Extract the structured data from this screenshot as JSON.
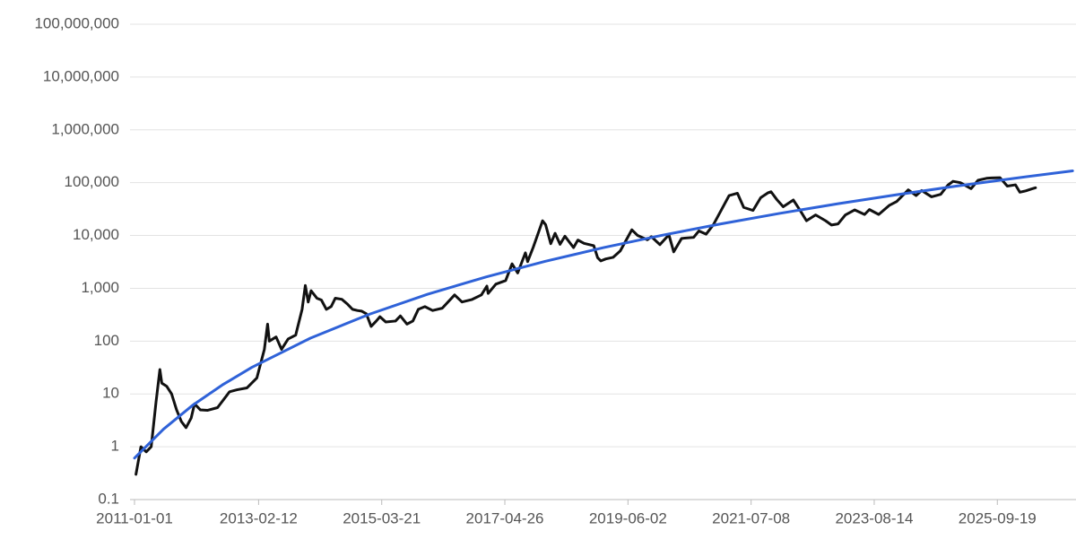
{
  "chart_data": {
    "type": "line",
    "yscale": "log",
    "grid": true,
    "xlim": [
      "2010-12-04",
      "2027-01-22"
    ],
    "xticks": [
      "2011-01-01",
      "2013-02-12",
      "2015-03-21",
      "2017-04-26",
      "2019-06-02",
      "2021-07-08",
      "2023-08-14",
      "2025-09-19"
    ],
    "ylim": [
      0.1,
      100000000
    ],
    "yticks": [
      0.1,
      1,
      10,
      100,
      {
        "value": 1000,
        "label": "1,000"
      },
      {
        "value": 10000,
        "label": "10,000"
      },
      {
        "value": 100000,
        "label": "100,000"
      },
      {
        "value": 1000000,
        "label": "1,000,000"
      },
      {
        "value": 10000000,
        "label": "10,000,000"
      },
      {
        "value": 100000000,
        "label": "100,000,000"
      }
    ],
    "series": [
      {
        "color": "#111111",
        "x": [
          "2011-01-10",
          "2011-02-10",
          "2011-03-15",
          "2011-04-15",
          "2011-05-15",
          "2011-06-08",
          "2011-06-20",
          "2011-07-20",
          "2011-08-20",
          "2011-09-20",
          "2011-10-20",
          "2011-11-18",
          "2011-12-20",
          "2012-01-10",
          "2012-02-15",
          "2012-04-01",
          "2012-06-01",
          "2012-08-15",
          "2012-10-01",
          "2012-12-01",
          "2013-02-01",
          "2013-03-20",
          "2013-04-09",
          "2013-04-20",
          "2013-06-01",
          "2013-07-05",
          "2013-08-15",
          "2013-10-01",
          "2013-11-10",
          "2013-11-30",
          "2013-12-18",
          "2014-01-05",
          "2014-02-10",
          "2014-03-10",
          "2014-04-10",
          "2014-05-10",
          "2014-06-05",
          "2014-07-15",
          "2014-08-20",
          "2014-09-20",
          "2014-10-20",
          "2014-11-15",
          "2014-12-15",
          "2015-01-14",
          "2015-02-15",
          "2015-03-10",
          "2015-04-15",
          "2015-06-15",
          "2015-07-15",
          "2015-08-25",
          "2015-10-01",
          "2015-11-04",
          "2015-12-15",
          "2016-02-01",
          "2016-04-01",
          "2016-06-17",
          "2016-08-02",
          "2016-10-01",
          "2016-12-01",
          "2017-01-04",
          "2017-01-12",
          "2017-03-01",
          "2017-05-01",
          "2017-06-10",
          "2017-07-15",
          "2017-09-01",
          "2017-09-15",
          "2017-10-20",
          "2017-12-17",
          "2018-01-05",
          "2018-02-06",
          "2018-03-05",
          "2018-04-05",
          "2018-05-05",
          "2018-06-28",
          "2018-07-25",
          "2018-09-01",
          "2018-11-01",
          "2018-11-25",
          "2018-12-15",
          "2019-01-15",
          "2019-03-01",
          "2019-04-15",
          "2019-06-26",
          "2019-08-01",
          "2019-10-01",
          "2019-10-26",
          "2019-12-18",
          "2020-02-12",
          "2020-03-13",
          "2020-05-01",
          "2020-07-15",
          "2020-08-17",
          "2020-10-01",
          "2020-11-15",
          "2020-12-31",
          "2021-02-21",
          "2021-04-14",
          "2021-05-23",
          "2021-07-20",
          "2021-09-06",
          "2021-10-20",
          "2021-11-09",
          "2021-12-15",
          "2022-01-24",
          "2022-03-28",
          "2022-05-12",
          "2022-06-18",
          "2022-08-14",
          "2022-10-15",
          "2022-11-21",
          "2023-01-01",
          "2023-02-15",
          "2023-04-14",
          "2023-06-15",
          "2023-07-15",
          "2023-09-11",
          "2023-11-15",
          "2024-01-01",
          "2024-03-13",
          "2024-05-01",
          "2024-06-05",
          "2024-08-05",
          "2024-10-01",
          "2024-11-15",
          "2024-12-17",
          "2025-02-01",
          "2025-04-08",
          "2025-05-22",
          "2025-07-14",
          "2025-08-14",
          "2025-10-06",
          "2025-11-20",
          "2026-01-10",
          "2026-02-06",
          "2026-03-15",
          "2026-04-20",
          "2026-05-15"
        ],
        "values": [
          0.3,
          1.0,
          0.8,
          1.0,
          7,
          29,
          16,
          14,
          10,
          5,
          3,
          2.3,
          3.5,
          6.5,
          5,
          4.9,
          5.5,
          11,
          12,
          13,
          20,
          70,
          210,
          100,
          120,
          70,
          110,
          130,
          400,
          1130,
          550,
          900,
          650,
          600,
          400,
          450,
          650,
          620,
          500,
          400,
          380,
          370,
          330,
          190,
          240,
          290,
          230,
          240,
          300,
          210,
          240,
          400,
          450,
          380,
          420,
          750,
          550,
          610,
          750,
          1100,
          800,
          1200,
          1400,
          2900,
          1950,
          4700,
          3200,
          6000,
          19000,
          16000,
          7000,
          11000,
          6800,
          9700,
          5900,
          8200,
          7100,
          6400,
          3800,
          3300,
          3600,
          3850,
          5100,
          12800,
          10000,
          8300,
          9500,
          6700,
          10300,
          4900,
          8800,
          9200,
          12200,
          10600,
          16000,
          29000,
          57000,
          63000,
          34000,
          29800,
          52000,
          64000,
          67500,
          48000,
          35000,
          47000,
          29000,
          19000,
          24500,
          19000,
          15800,
          16600,
          24500,
          30500,
          25000,
          31000,
          25000,
          37000,
          44000,
          73000,
          57000,
          71000,
          54000,
          60000,
          90000,
          106000,
          100000,
          77000,
          111000,
          121000,
          123000,
          124000,
          86000,
          91000,
          66000,
          70000,
          76000,
          80000
        ]
      },
      {
        "color": "#2f62d8",
        "x": [
          "2011-01-01",
          "2011-07-01",
          "2012-01-01",
          "2012-07-01",
          "2013-01-01",
          "2014-01-01",
          "2015-01-01",
          "2016-01-01",
          "2017-01-01",
          "2018-01-01",
          "2019-01-01",
          "2020-01-01",
          "2021-01-01",
          "2022-01-01",
          "2023-01-01",
          "2024-01-01",
          "2025-01-01",
          "2026-01-01",
          "2027-01-01"
        ],
        "values": [
          0.61,
          2.16,
          6.2,
          14.8,
          31.9,
          114,
          321,
          771,
          1650,
          3230,
          5890,
          10100,
          16600,
          26200,
          39900,
          59100,
          85500,
          120800,
          167100
        ]
      }
    ]
  }
}
